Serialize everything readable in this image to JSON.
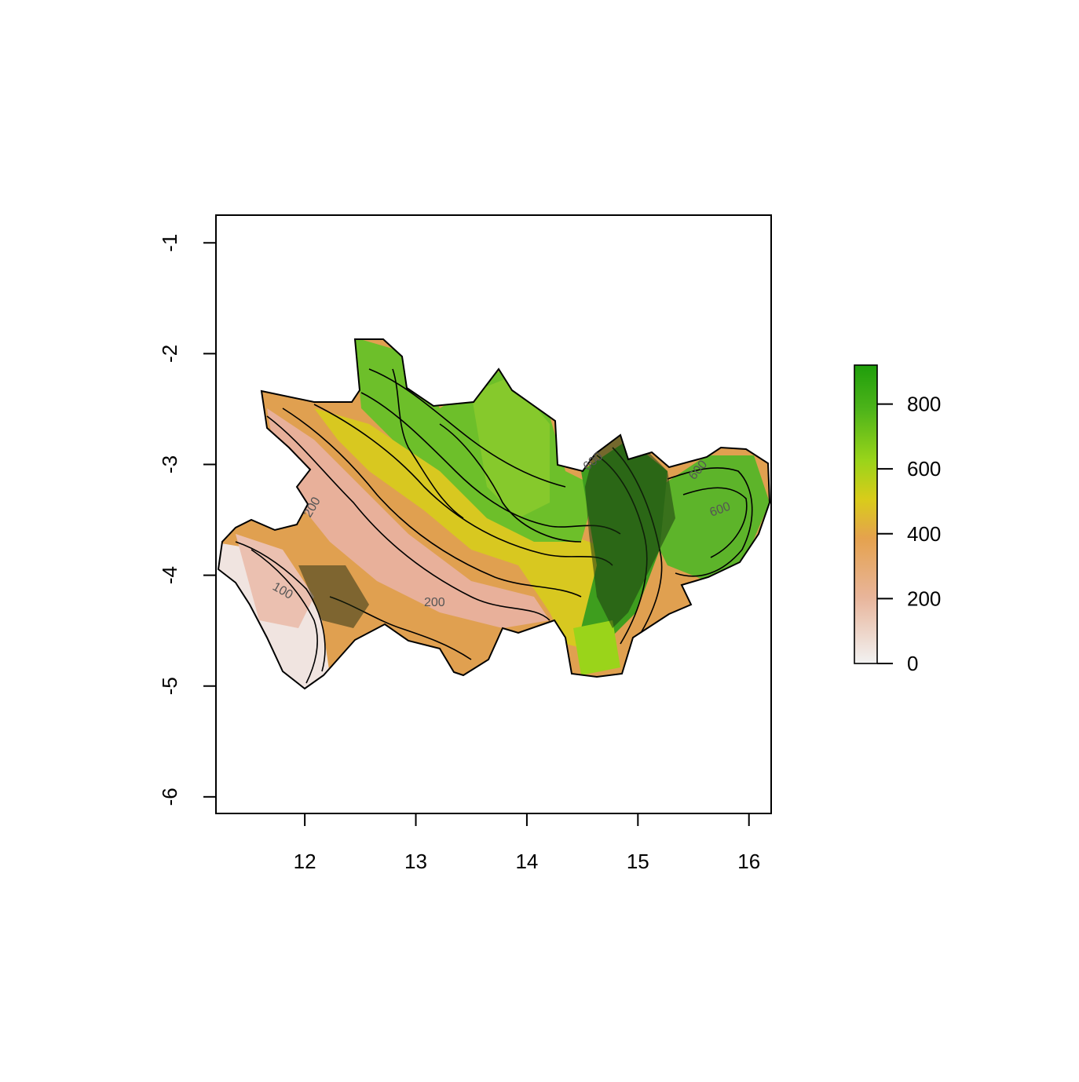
{
  "map": {
    "type": "elevation-raster-with-contours",
    "xlim": [
      11.2,
      16.2
    ],
    "ylim": [
      -6.15,
      -0.75
    ],
    "x_ticks": [
      12,
      13,
      14,
      15,
      16
    ],
    "x_tick_labels": [
      "12",
      "13",
      "14",
      "15",
      "16"
    ],
    "y_ticks": [
      -1,
      -2,
      -3,
      -4,
      -5,
      -6
    ],
    "y_tick_labels": [
      "-1",
      "-2",
      "-3",
      "-4",
      "-5",
      "-6"
    ],
    "contour_labels": [
      "200",
      "200",
      "600",
      "600",
      "600",
      "100"
    ]
  },
  "legend": {
    "range": [
      0,
      920
    ],
    "ticks": [
      0,
      200,
      400,
      600,
      800
    ],
    "tick_labels": [
      "0",
      "200",
      "400",
      "600",
      "800"
    ],
    "colors": [
      "#F2F2F2",
      "#E8B59B",
      "#E5A24E",
      "#D9CC1A",
      "#9AD41A",
      "#4EB41A",
      "#1F9E0B"
    ]
  }
}
